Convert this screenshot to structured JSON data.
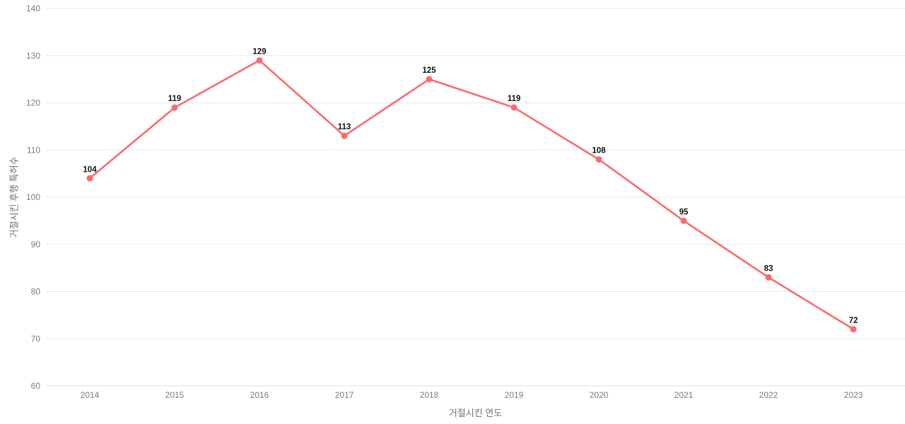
{
  "chart_data": {
    "type": "line",
    "title": "",
    "xlabel": "거절시킨 연도",
    "ylabel": "거절시킨 후행 특허수",
    "categories": [
      "2014",
      "2015",
      "2016",
      "2017",
      "2018",
      "2019",
      "2020",
      "2021",
      "2022",
      "2023"
    ],
    "values": [
      104,
      119,
      129,
      113,
      125,
      119,
      108,
      95,
      83,
      72
    ],
    "point_labels": [
      "104",
      "119",
      "129",
      "113",
      "125",
      "119",
      "108",
      "95",
      "83",
      "72"
    ],
    "ylim": [
      60,
      140
    ],
    "ytick_step": 10,
    "yticks": [
      60,
      70,
      80,
      90,
      100,
      110,
      120,
      130,
      140
    ],
    "grid": true,
    "legend_position": "none",
    "line_color": "#f96b6b",
    "point_color": "#f96b6b",
    "data_label_color": "#111111",
    "tick_label_color": "#7b7b7b",
    "grid_color": "#e9e9e9",
    "bottom_axis_color": "#d9dfe6",
    "background_color": "#ffffff"
  }
}
